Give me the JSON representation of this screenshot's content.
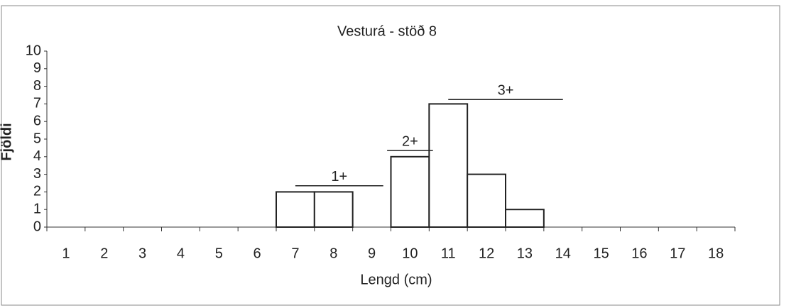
{
  "chart_data": {
    "type": "bar",
    "title": "Vesturá - stöð 8",
    "x_label": "Lengd (cm)",
    "y_label": "Fjöldi",
    "categories": [
      "1",
      "2",
      "3",
      "4",
      "5",
      "6",
      "7",
      "8",
      "9",
      "10",
      "11",
      "12",
      "13",
      "14",
      "15",
      "16",
      "17",
      "18"
    ],
    "values": [
      0,
      0,
      0,
      0,
      0,
      0,
      2,
      2,
      0,
      4,
      7,
      3,
      1,
      0,
      0,
      0,
      0,
      0
    ],
    "color": "#ffffff",
    "ylim": [
      0,
      10
    ],
    "yticks": [
      0,
      1,
      2,
      3,
      4,
      5,
      6,
      7,
      8,
      9,
      10
    ],
    "grid": false,
    "annotations": [
      "1+",
      "2+",
      "3+"
    ]
  }
}
